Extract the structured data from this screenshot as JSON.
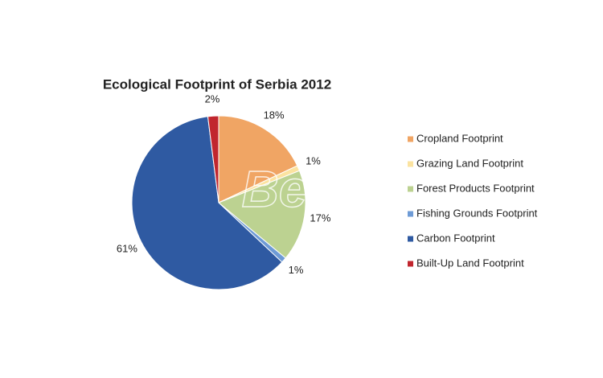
{
  "chart_data": {
    "type": "pie",
    "title": "Ecological Footprint of Serbia 2012",
    "categories": [
      "Cropland Footprint",
      "Grazing Land Footprint",
      "Forest Products Footprint",
      "Fishing Grounds Footprint",
      "Carbon Footprint",
      "Built-Up Land Footprint"
    ],
    "values": [
      18,
      1,
      17,
      1,
      61,
      2
    ],
    "value_labels": [
      "18%",
      "1%",
      "17%",
      "1%",
      "61%",
      "2%"
    ],
    "colors": [
      "#f0a564",
      "#fbe3a0",
      "#bcd291",
      "#6e9bd6",
      "#2f5aa2",
      "#c1262e"
    ],
    "legend": "right",
    "watermark": "Beta"
  }
}
